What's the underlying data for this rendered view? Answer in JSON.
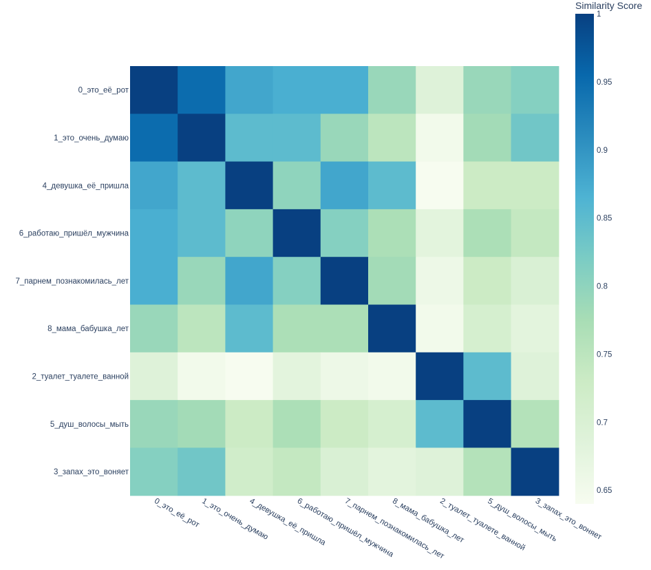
{
  "chart_data": {
    "type": "heatmap",
    "title": "",
    "xlabel": "",
    "ylabel": "",
    "x_labels": [
      "0_это_её_рот",
      "1_это_очень_думаю",
      "4_девушка_её_пришла",
      "6_работаю_пришёл_мужчина",
      "7_парнем_познакомилась_лет",
      "8_мама_бабушка_лет",
      "2_туалет_туалете_ванной",
      "5_душ_волосы_мыть",
      "3_запах_это_воняет"
    ],
    "y_labels": [
      "0_это_её_рот",
      "1_это_очень_думаю",
      "4_девушка_её_пришла",
      "6_работаю_пришёл_мужчина",
      "7_парнем_познакомилась_лет",
      "8_мама_бабушка_лет",
      "2_туалет_туалете_ванной",
      "5_душ_волосы_мыть",
      "3_запах_это_воняет"
    ],
    "z": [
      [
        1.0,
        0.95,
        0.88,
        0.87,
        0.87,
        0.79,
        0.69,
        0.79,
        0.81
      ],
      [
        0.95,
        1.0,
        0.85,
        0.85,
        0.79,
        0.75,
        0.65,
        0.78,
        0.83
      ],
      [
        0.88,
        0.85,
        1.0,
        0.8,
        0.88,
        0.85,
        0.64,
        0.73,
        0.73
      ],
      [
        0.87,
        0.85,
        0.8,
        1.0,
        0.81,
        0.77,
        0.68,
        0.77,
        0.74
      ],
      [
        0.87,
        0.79,
        0.88,
        0.81,
        1.0,
        0.78,
        0.66,
        0.73,
        0.7
      ],
      [
        0.79,
        0.75,
        0.85,
        0.77,
        0.77,
        1.0,
        0.65,
        0.71,
        0.68
      ],
      [
        0.69,
        0.65,
        0.64,
        0.68,
        0.66,
        0.65,
        1.0,
        0.85,
        0.69
      ],
      [
        0.79,
        0.78,
        0.73,
        0.77,
        0.73,
        0.71,
        0.85,
        1.0,
        0.76
      ],
      [
        0.81,
        0.83,
        0.72,
        0.74,
        0.7,
        0.68,
        0.69,
        0.76,
        1.0
      ]
    ],
    "zmin": 0.64,
    "zmax": 1.0,
    "colorscale": "GnBu",
    "colorbar": {
      "title": "Similarity Score",
      "ticks": [
        1,
        0.95,
        0.9,
        0.85,
        0.8,
        0.75,
        0.7,
        0.65
      ],
      "tick_labels": [
        "1",
        "0.95",
        "0.9",
        "0.85",
        "0.8",
        "0.75",
        "0.7",
        "0.65"
      ]
    },
    "grid": false,
    "legend": "colorbar-right"
  }
}
